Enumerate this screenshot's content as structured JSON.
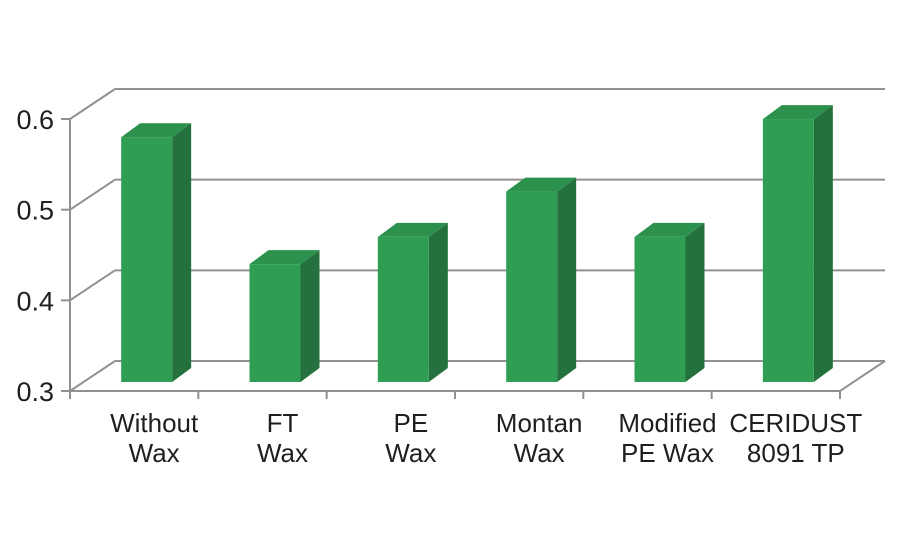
{
  "chart_data": {
    "type": "bar",
    "style": "3d-column",
    "title": "",
    "xlabel": "",
    "ylabel": "",
    "grid": "horizontal",
    "legend_position": "none",
    "categories": [
      [
        "Without",
        "Wax"
      ],
      [
        "FT",
        "Wax"
      ],
      [
        "PE",
        "Wax"
      ],
      [
        "Montan",
        "Wax"
      ],
      [
        "Modified",
        "PE Wax"
      ],
      [
        "CERIDUST",
        "8091 TP"
      ]
    ],
    "values": [
      0.57,
      0.43,
      0.46,
      0.51,
      0.46,
      0.59
    ],
    "ylim": [
      0.3,
      0.6
    ],
    "yticks": [
      0.3,
      0.4,
      0.5,
      0.6
    ],
    "ytick_labels": [
      "0.3",
      "0.4",
      "0.5",
      "0.6"
    ],
    "colors": {
      "bar_front": "#2f9e52",
      "bar_top": "#2c914c",
      "bar_side": "#24713e",
      "gridline": "#919191",
      "axis": "#919191",
      "text": "#1f1f1f",
      "background": "#ffffff"
    }
  }
}
